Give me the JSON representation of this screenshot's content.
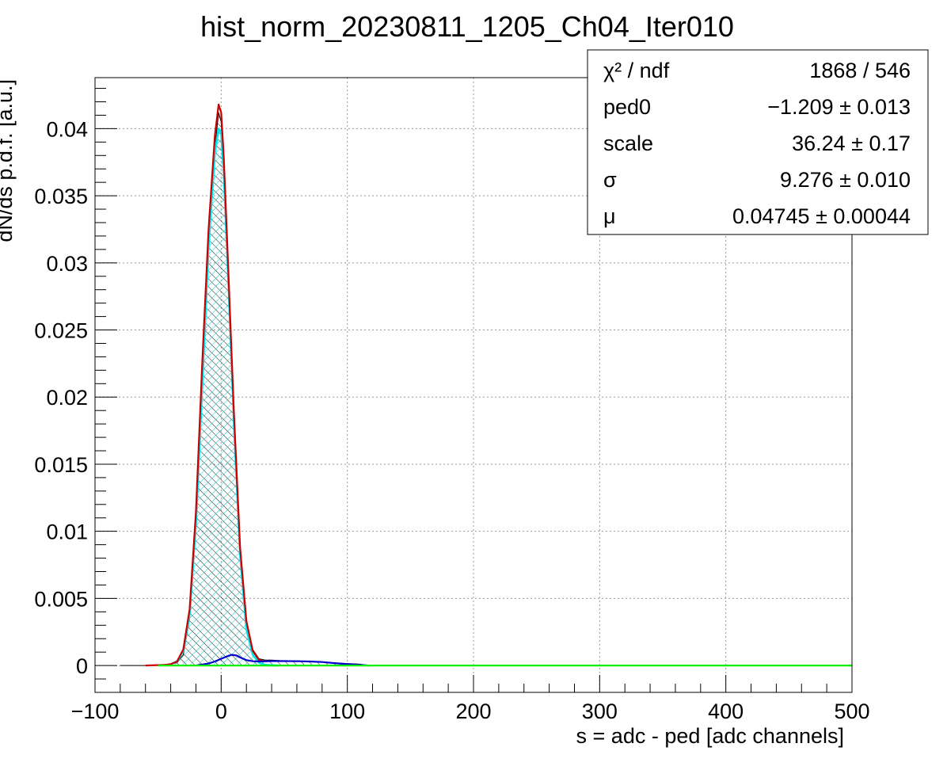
{
  "chart_data": {
    "type": "line",
    "title": "hist_norm_20230811_1205_Ch04_Iter010",
    "xlabel": "s = adc - ped [adc channels]",
    "ylabel": "dN/ds p.d.f. [a.u.]",
    "xlim": [
      -100,
      500
    ],
    "ylim": [
      -0.002,
      0.0438
    ],
    "grid": true,
    "x_ticks": [
      -100,
      0,
      100,
      200,
      300,
      400,
      500
    ],
    "x_tick_labels": [
      "−100",
      "0",
      "100",
      "200",
      "300",
      "400",
      "500"
    ],
    "y_ticks": [
      0,
      0.005,
      0.01,
      0.015,
      0.02,
      0.025,
      0.03,
      0.035,
      0.04
    ],
    "y_tick_labels": [
      "0",
      "0.005",
      "0.01",
      "0.015",
      "0.02",
      "0.025",
      "0.03",
      "0.035",
      "0.04"
    ],
    "stats_box": {
      "placement": "top-right",
      "rows": [
        {
          "label": "χ² / ndf",
          "value": "1868 / 546"
        },
        {
          "label": "ped0",
          "value": "−1.209 ± 0.013"
        },
        {
          "label": "scale",
          "value": "36.24 ± 0.17"
        },
        {
          "label": "σ",
          "value": "9.276 ± 0.010"
        },
        {
          "label": "μ",
          "value": "0.04745 ± 0.00044"
        }
      ]
    },
    "series": [
      {
        "role": "histogram",
        "color": "#000000",
        "fill": "hatched-black",
        "x": [
          -80,
          -60,
          -50,
          -40,
          -35,
          -30,
          -25,
          -20,
          -15,
          -10,
          -5,
          -2,
          0,
          2,
          5,
          10,
          15,
          20,
          25,
          30,
          35,
          40,
          50,
          60,
          70,
          80,
          90,
          100,
          110,
          117
        ],
        "values": [
          0.0,
          0.0,
          5e-05,
          0.0001,
          0.0002,
          0.0008,
          0.0035,
          0.0105,
          0.021,
          0.031,
          0.0385,
          0.0412,
          0.0405,
          0.037,
          0.0305,
          0.019,
          0.009,
          0.0032,
          0.0012,
          0.0005,
          0.0004,
          0.0004,
          0.00035,
          0.00035,
          0.0003,
          0.00025,
          0.0002,
          0.00015,
          0.0001,
          0.0
        ]
      },
      {
        "role": "total-fit",
        "color": "#cc0000",
        "x": [
          -60,
          -45,
          -40,
          -35,
          -30,
          -25,
          -20,
          -15,
          -10,
          -5,
          -2,
          0,
          2,
          5,
          10,
          15,
          20,
          25,
          30,
          35
        ],
        "values": [
          0.0,
          5e-05,
          0.0001,
          0.0003,
          0.0012,
          0.0042,
          0.0115,
          0.0225,
          0.0325,
          0.0395,
          0.0418,
          0.0412,
          0.038,
          0.031,
          0.019,
          0.0088,
          0.0033,
          0.0011,
          0.0004,
          0.0003
        ]
      },
      {
        "role": "pedestal-component",
        "color": "#00e5ee",
        "fill": "hatched-cyan",
        "x": [
          -45,
          -40,
          -35,
          -30,
          -25,
          -20,
          -15,
          -10,
          -5,
          -2,
          0,
          2,
          5,
          10,
          15,
          20,
          25,
          30,
          35,
          45
        ],
        "values": [
          0.0,
          0.0001,
          0.0003,
          0.0011,
          0.0038,
          0.0106,
          0.0208,
          0.0312,
          0.0382,
          0.04,
          0.0397,
          0.0368,
          0.0303,
          0.0183,
          0.0083,
          0.0027,
          0.0008,
          0.0002,
          5e-05,
          0.0
        ]
      },
      {
        "role": "signal-component",
        "color": "#0000cc",
        "x": [
          -20,
          -10,
          -5,
          0,
          5,
          8,
          12,
          15,
          20,
          25,
          30,
          40,
          50,
          60,
          70,
          80,
          90,
          100,
          110,
          117
        ],
        "values": [
          0.0,
          0.00015,
          0.0003,
          0.0005,
          0.0007,
          0.0008,
          0.00075,
          0.0006,
          0.0004,
          0.00032,
          0.0003,
          0.00033,
          0.00033,
          0.00032,
          0.0003,
          0.00026,
          0.00018,
          0.0001,
          4e-05,
          0.0
        ]
      },
      {
        "role": "baseline",
        "color": "#00ee00",
        "x": [
          -50,
          500
        ],
        "values": [
          0.0,
          0.0
        ]
      }
    ]
  }
}
